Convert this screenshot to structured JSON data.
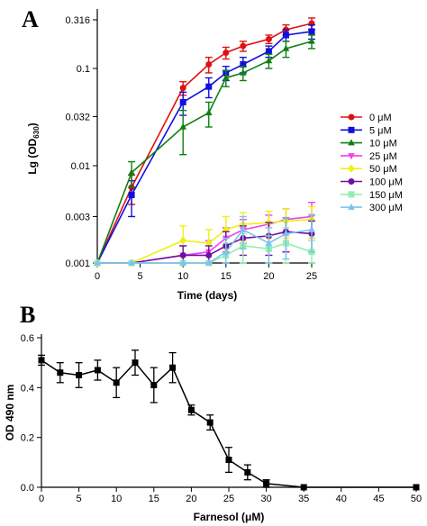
{
  "chart_data": [
    {
      "panel": "A",
      "type": "line",
      "xlabel": "Time (days)",
      "ylabel_main": "Lg (OD",
      "ylabel_sub": "630",
      "ylabel_close": ")",
      "yscale": "log",
      "xlim": [
        0,
        26
      ],
      "ylim": [
        0.001,
        0.4
      ],
      "xticks": [
        0,
        5,
        10,
        15,
        20,
        25
      ],
      "yticks": [
        0.001,
        0.003,
        0.01,
        0.032,
        0.1,
        0.316
      ],
      "ytick_labels": [
        "0.001",
        "0.003",
        "0.01",
        "0.032",
        "0.1",
        "0.316"
      ],
      "legend_position": "right",
      "x": [
        0,
        4,
        10,
        13,
        15,
        17,
        20,
        22,
        25
      ],
      "series": [
        {
          "name": "0 μM",
          "color": "#e01010",
          "marker": "circle",
          "values": [
            0.001,
            0.006,
            0.063,
            0.11,
            0.145,
            0.17,
            0.2,
            0.25,
            0.29
          ],
          "err": [
            0,
            0.002,
            0.01,
            0.02,
            0.02,
            0.02,
            0.02,
            0.03,
            0.04
          ]
        },
        {
          "name": "5 μM",
          "color": "#1010e0",
          "marker": "square",
          "values": [
            0.001,
            0.005,
            0.045,
            0.065,
            0.09,
            0.11,
            0.15,
            0.22,
            0.24
          ],
          "err": [
            0,
            0.002,
            0.012,
            0.015,
            0.015,
            0.02,
            0.02,
            0.03,
            0.04
          ]
        },
        {
          "name": "10 μM",
          "color": "#108010",
          "marker": "triangle-up",
          "values": [
            0.001,
            0.0085,
            0.025,
            0.035,
            0.08,
            0.09,
            0.12,
            0.16,
            0.19
          ],
          "err": [
            0,
            0.0025,
            0.012,
            0.01,
            0.015,
            0.015,
            0.02,
            0.03,
            0.03
          ]
        },
        {
          "name": "25 μM",
          "color": "#f040f0",
          "marker": "triangle-down",
          "values": [
            0.001,
            0.001,
            0.0012,
            0.0013,
            0.0018,
            0.0022,
            0.0025,
            0.0028,
            0.003
          ],
          "err": [
            0,
            0,
            0.0003,
            0.0004,
            0.0005,
            0.0006,
            0.0006,
            0.0008,
            0.0012
          ]
        },
        {
          "name": "50 μM",
          "color": "#f0f010",
          "marker": "diamond",
          "values": [
            0.001,
            0.001,
            0.0017,
            0.0016,
            0.0022,
            0.0025,
            0.0026,
            0.0027,
            0.0028
          ],
          "err": [
            0,
            0,
            0.0007,
            0.0006,
            0.0008,
            0.0008,
            0.0008,
            0.0009,
            0.001
          ]
        },
        {
          "name": "100 μM",
          "color": "#7010a0",
          "marker": "circle",
          "values": [
            0.001,
            0.001,
            0.0012,
            0.0012,
            0.0015,
            0.0018,
            0.0019,
            0.0021,
            0.002
          ],
          "err": [
            0,
            0,
            0.0003,
            0.0003,
            0.0006,
            0.0006,
            0.0007,
            0.0008,
            0.0007
          ]
        },
        {
          "name": "150 μM",
          "color": "#90f0b0",
          "marker": "square",
          "values": [
            0.001,
            0.001,
            0.001,
            0.001,
            0.0012,
            0.0015,
            0.0014,
            0.0016,
            0.0013
          ],
          "err": [
            0,
            0,
            0,
            0,
            0.0004,
            0.0005,
            0.0005,
            0.0007,
            0.0004
          ]
        },
        {
          "name": "300 μM",
          "color": "#80c0f0",
          "marker": "triangle-up",
          "values": [
            0.001,
            0.001,
            0.001,
            0.001,
            0.0013,
            0.0022,
            0.0016,
            0.002,
            0.0022
          ],
          "err": [
            0,
            0,
            0,
            0,
            0.0005,
            0.0008,
            0.0007,
            0.0009,
            0.0009
          ]
        }
      ]
    },
    {
      "panel": "B",
      "type": "line",
      "xlabel": "Farnesol (μM)",
      "ylabel": "OD 490 nm",
      "xlim": [
        0,
        50
      ],
      "ylim": [
        0,
        0.6
      ],
      "xticks": [
        0,
        5,
        10,
        15,
        20,
        25,
        30,
        35,
        40,
        45,
        50
      ],
      "yticks": [
        0.0,
        0.2,
        0.4,
        0.6
      ],
      "ytick_labels": [
        "0.0",
        "0.2",
        "0.4",
        "0.6"
      ],
      "series": [
        {
          "name": "",
          "color": "#000000",
          "marker": "square",
          "x": [
            0,
            2.5,
            5,
            7.5,
            10,
            12.5,
            15,
            17.5,
            20,
            22.5,
            25,
            27.5,
            30,
            35,
            50
          ],
          "values": [
            0.51,
            0.46,
            0.45,
            0.47,
            0.42,
            0.5,
            0.41,
            0.48,
            0.31,
            0.26,
            0.11,
            0.06,
            0.015,
            0.0,
            0.0
          ],
          "err": [
            0.02,
            0.04,
            0.05,
            0.04,
            0.06,
            0.05,
            0.07,
            0.06,
            0.02,
            0.03,
            0.05,
            0.03,
            0.015,
            0,
            0
          ]
        }
      ]
    }
  ]
}
